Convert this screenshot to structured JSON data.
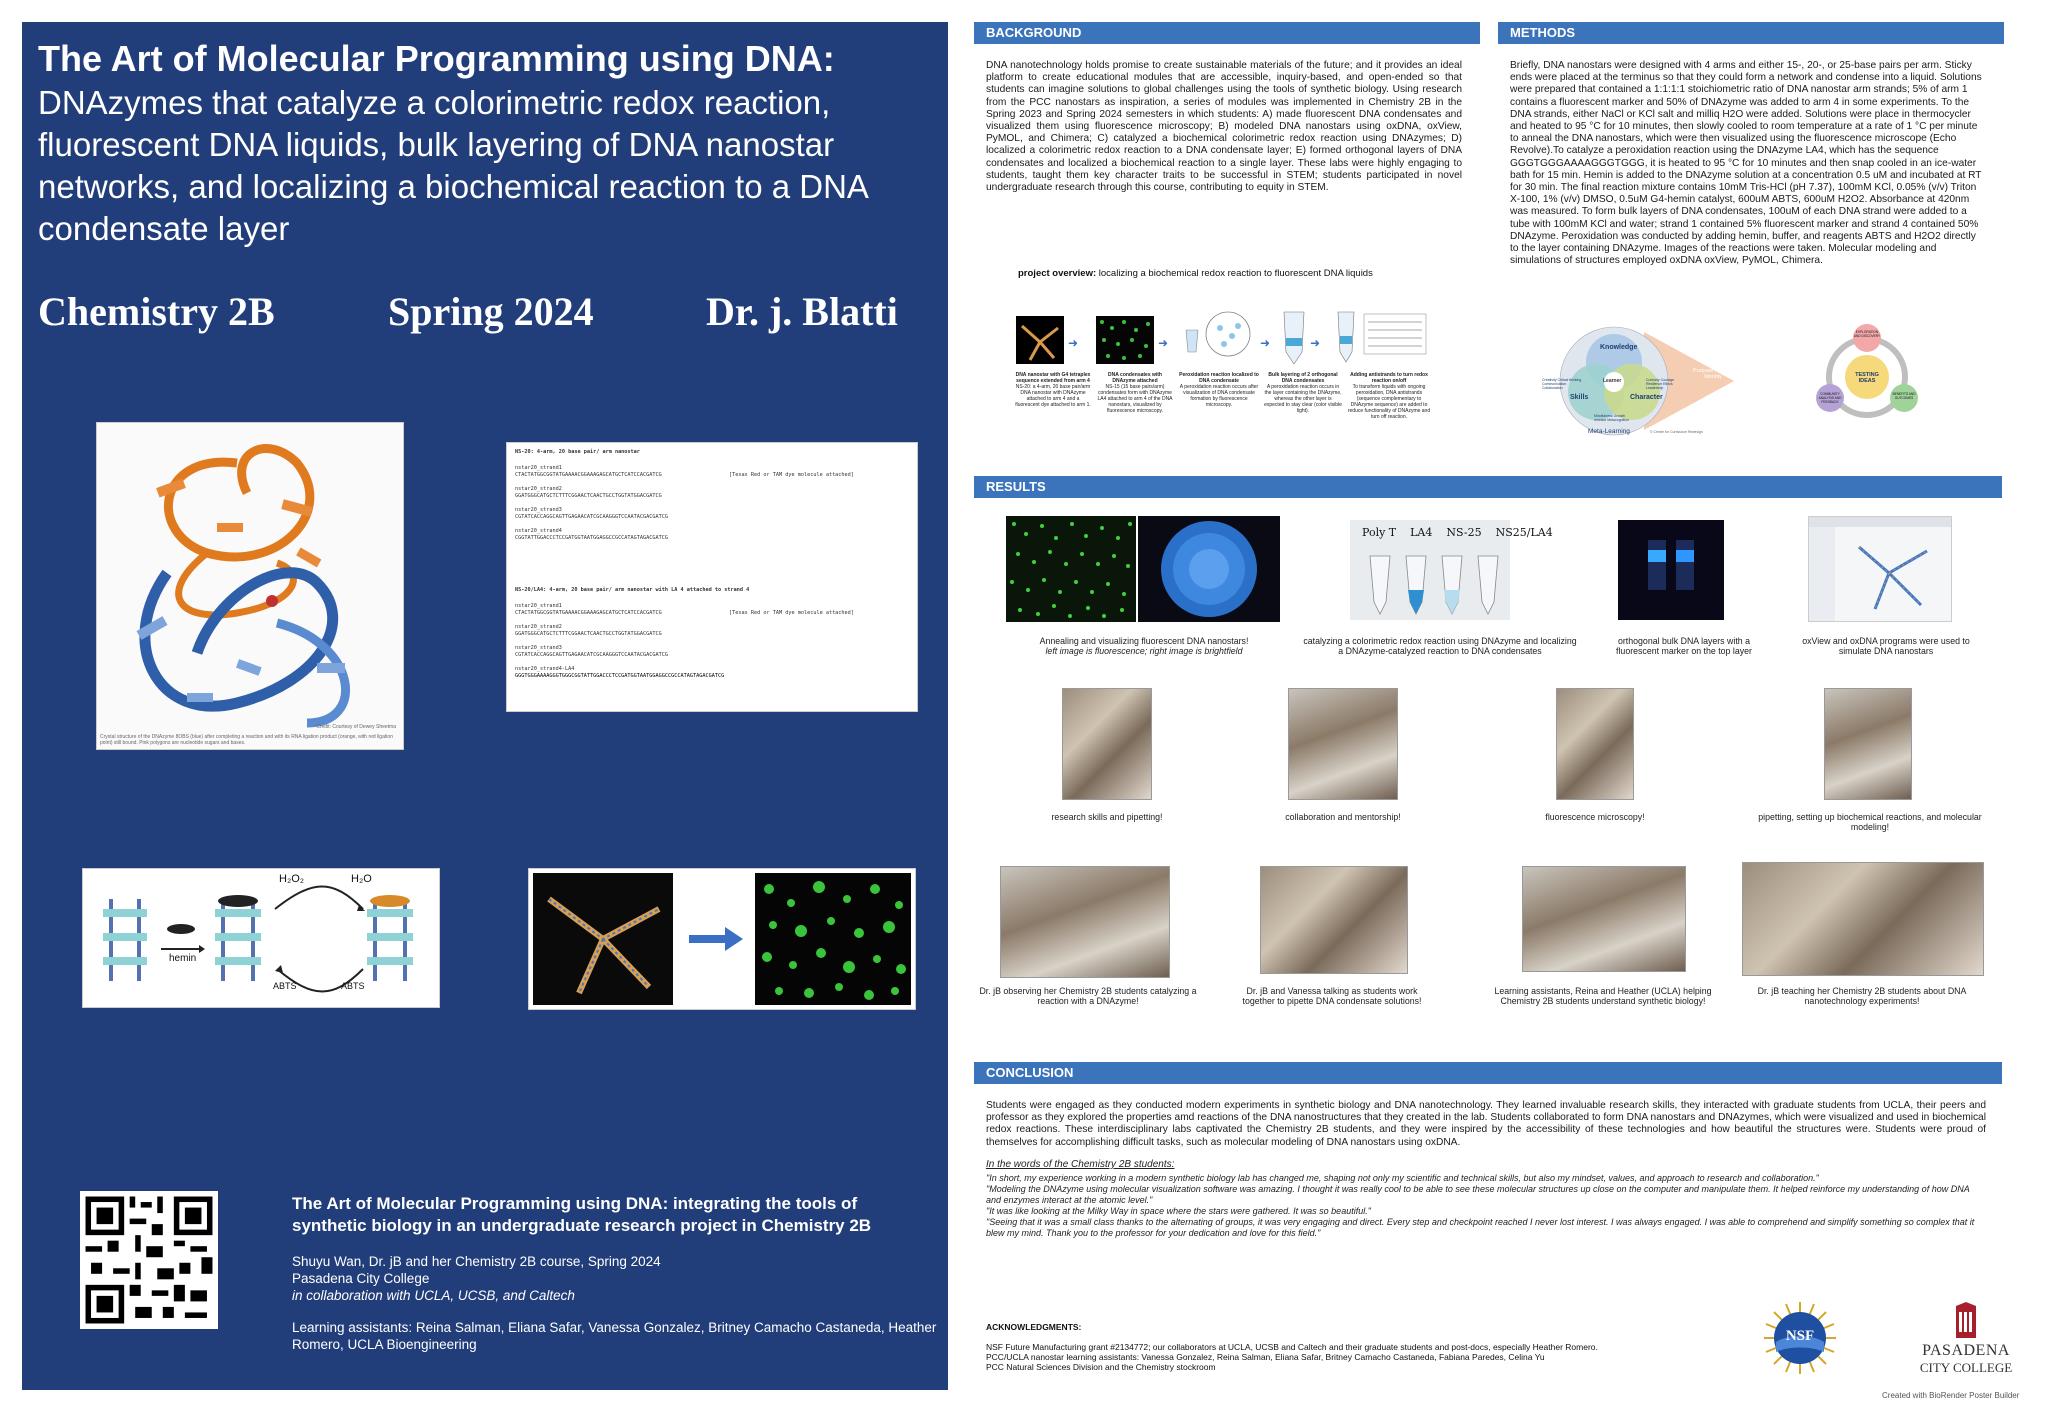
{
  "left": {
    "title_main": "The Art of Molecular Programming using DNA:",
    "title_sub": "DNAzymes that catalyze a colorimetric redox reaction, fluorescent DNA liquids, bulk layering of DNA nanostar networks, and localizing a biochemical reaction to a DNA condensate layer",
    "course": "Chemistry 2B",
    "term": "Spring 2024",
    "instructor": "Dr. j. Blatti",
    "dnazyme_credit": "Credit: Courtesy of Dewey Sheetma",
    "dnazyme_caption": "Crystal structure of the DNAzyme 8OBS (blue) after completing a reaction and with its RNA ligation product (orange, with red ligation point) still bound. Pink polygons are nucleotide sugars and bases.",
    "seq_ns20_header": "NS-20: 4-arm, 20 base pair/ arm nanostar",
    "seq_ns20_la4_header": "NS-20/LA4: 4-arm, 20 base pair/ arm nanostar with LA 4 attached to strand 4",
    "seq_note": "[Texas Red or TAM dye molecule attached]",
    "strands": [
      {
        "name": "nstar20_strand1",
        "seq": "CTACTATGGCGGTATGAAAACGGAAAGAGCATGCTCATCCACGATCG"
      },
      {
        "name": "nstar20_strand2",
        "seq": "GGATGGGCATGCTCTTTCGGAACTCAACTGCCTGGTATGGACGATCG"
      },
      {
        "name": "nstar20_strand3",
        "seq": "CGTATCACCAGGCAGTTGAGAACATCGCAAGGGTCCAATACGACGATCG"
      },
      {
        "name": "nstar20_strand4",
        "seq": "CGGTATTGGACCCTCCGATGGTAATGGAGGCCGCCATAGTAGACGATCG"
      }
    ],
    "strands_la4": [
      {
        "name": "nstar20_strand1",
        "seq": "CTACTATGGCGGTATGAAAACGGAAAGAGCATGCTCATCCACGATCG"
      },
      {
        "name": "nstar20_strand2",
        "seq": "GGATGGGCATGCTCTTTCGGAACTCAACTGCCTGGTATGGACGATCG"
      },
      {
        "name": "nstar20_strand3",
        "seq": "CGTATCACCAGGCAGTTGAGAACATCGCAAGGGTCCAATACGACGATCG"
      },
      {
        "name": "nstar20_strand4-LA4",
        "seq": "GGGTGGGAAAAGGGTGGGCGGTATTGGACCCTCCGATGGTAATGGAGGCCGCCATAGTAGACGATCG"
      }
    ],
    "hemin_label": "hemin",
    "h2o2_label": "H₂O₂",
    "h2o_label": "H₂O",
    "abts_left": "ABTS",
    "abts_right": "ABTS",
    "ref_title": "The Art of Molecular Programming using DNA: integrating the tools of synthetic biology in an undergraduate research project in Chemistry 2B",
    "ref_authors": "Shuyu Wan, Dr. jB and her Chemistry 2B course, Spring 2024",
    "ref_school": "Pasadena City College",
    "ref_collab": "in collaboration with UCLA, UCSB, and Caltech",
    "ref_assistants": "Learning assistants: Reina Salman, Eliana Safar, Vanessa Gonzalez,  Britney Camacho Castaneda, Heather Romero, UCLA Bioengineering"
  },
  "background": {
    "header": "BACKGROUND",
    "text": "DNA nanotechnology holds promise to create sustainable materials of the future; and it provides an ideal platform to create educational modules that are accessible, inquiry-based, and open-ended so that students can imagine solutions to global challenges using the tools of synthetic biology. Using research from the PCC nanostars as inspiration, a series of modules was implemented in Chemistry 2B in the Spring 2023 and Spring 2024 semesters in which students: A) made fluorescent DNA condensates and visualized them using fluorescence microscopy; B) modeled DNA nanostars using oxDNA, oxView, PyMOL, and Chimera; C) catalyzed a biochemical colorimetric redox reaction using DNAzymes; D) localized a colorimetric redox reaction to a DNA condensate layer; E) formed orthogonal layers of DNA condensates and localized a biochemical reaction to a single layer. These labs were highly engaging to students, taught them key character traits to be successful in STEM; students participated in novel undergraduate research through this course, contributing to equity in STEM.",
    "overview_label": "project overview:",
    "overview_text": "localizing a biochemical redox reaction to fluorescent DNA liquids",
    "steps": [
      {
        "title": "DNA nanostar with G4 tetraplex sequence extended from arm 4",
        "body": "NS-20: a 4-arm, 20 base pair/arm DNA nanostar with DNAzyme attached to arm 4 and a fluorescent dye attached to arm 1."
      },
      {
        "title": "DNA condensates with DNAzyme attached",
        "body": "NS-15 (15 base pairs/arm) condensates form with DNAzyme LA4 attached to arm 4 of the DNA nanostars, visualized by fluorescence microscopy."
      },
      {
        "title": "Peroxidation reaction localized to DNA condensate",
        "body": "A peroxidation reaction occurs after visualization of DNA condensate formation by fluorescence microscopy."
      },
      {
        "title": "Bulk layering of 2 orthogonal DNA condensates",
        "body": "A peroxidation reaction occurs in the layer containing the DNAzyme, whereas the other layer is expected to stay clear (color visible light)."
      },
      {
        "title": "Adding antistrands to turn redox reaction on/off",
        "body": "To transform liquids with ongoing peroxidation, DNA antistrands (sequence complementary to DNAzyme sequence) are added to reduce functionality of DNAzyme and turn off reaction."
      }
    ]
  },
  "methods": {
    "header": "METHODS",
    "text": "Briefly, DNA nanostars were designed with 4 arms and either 15-, 20-, or 25-base pairs per arm. Sticky ends were placed at the terminus so that they could form a network and condense into a liquid. Solutions were prepared that contained a 1:1:1:1 stoichiometric ratio of DNA nanostar arm strands; 5% of arm 1 contains a fluorescent marker and 50% of DNAzyme was added to arm 4 in some experiments. To the DNA strands, either NaCl or KCl salt and milliq H2O were added. Solutions were place in thermocycler and heated to 95 °C for 10 minutes, then slowly cooled to room temperature at a rate of 1 °C per minute to anneal the DNA nanostars, which were then visualized using the fluorescence microscope (Echo Revolve).To catalyze a peroxidation reaction using the DNAzyme LA4, which has the sequence GGGTGGGAAAAGGGTGGG, it is heated to 95 °C for 10 minutes and then snap cooled in an ice-water bath for 15 min. Hemin is added to the DNAzyme solution at a concentration 0.5 uM and incubated at RT for 30 min. The final reaction mixture contains 10mM Tris-HCl (pH 7.37), 100mM KCl, 0.05% (v/v) Triton X-100, 1% (v/v) DMSO, 0.5uM G4-hemin catalyst, 600uM ABTS, 600uM H2O2. Absorbance at 420nm was measured. To form bulk layers of DNA condensates, 100uM of each DNA strand were added to a tube with 100mM KCl and water; strand 1 contained 5% fluorescent marker and strand 4 contained 50% DNAzyme. Peroxidation was conducted by adding hemin, buffer, and reagents ABTS and H2O2 directly to the layer containing DNAzyme. Images of the reactions were taken. Molecular modeling and simulations of structures employed oxDNA oxView, PyMOL, Chimera.",
    "venn_labels": [
      "Knowledge",
      "Skills",
      "Character",
      "Meta-Learning",
      "Learner",
      "Purpose Agency Identity"
    ],
    "venn_small": [
      "Creativity Critical thinking Communication Collaboration",
      "Curiosity Courage Resilience Ethics Leadership",
      "Mindfulness Growth mindset Metacognition"
    ],
    "venn_credit": "© Center for Curriculum Redesign",
    "cycle_center": "TESTING IDEAS",
    "cycle_labels": [
      "EXPLORATION AND DISCOVERY",
      "COMMUNITY ANALYSIS AND FEEDBACK",
      "BENEFITS AND OUTCOMES"
    ]
  },
  "results": {
    "header": "RESULTS",
    "captions_row1": [
      {
        "text": "Annealing and visualizing fluorescent DNA nanostars!",
        "italic": "left image is fluorescence; right image is brightfield"
      },
      {
        "text": "catalyzing a colorimetric redox reaction using DNAzyme and localizing a DNAzyme-catalyzed reaction to DNA condensates",
        "italic": ""
      },
      {
        "text": "orthogonal bulk DNA layers with a fluorescent marker on the top layer",
        "italic": ""
      },
      {
        "text": "oxView and oxDNA programs were used to simulate DNA nanostars",
        "italic": ""
      }
    ],
    "tube_label": "Poly T    LA4    NS-25    NS25/LA4",
    "captions_row2": [
      "research skills and pipetting!",
      "collaboration and mentorship!",
      "fluorescence microscopy!",
      "pipetting, setting up biochemical reactions, and molecular modeling!"
    ],
    "captions_row3": [
      "Dr. jB observing her Chemistry 2B students catalyzing a reaction with a DNAzyme!",
      "Dr. jB and Vanessa talking as students work together to pipette DNA condensate solutions!",
      "Learning assistants, Reina and Heather (UCLA) helping Chemistry 2B students understand synthetic biology!",
      "Dr. jB teaching her Chemistry 2B students about DNA nanotechnology experiments!"
    ]
  },
  "conclusion": {
    "header": "CONCLUSION",
    "text": "Students were engaged as they conducted modern experiments in synthetic biology and DNA nanotechnology. They learned invaluable research skills, they interacted with graduate students from UCLA, their peers and professor as they explored the properties amd reactions of the DNA nanostructures that they created in the lab. Students collaborated to form DNA nanostars and DNAzymes, which were visualized and used in biochemical redox reactions. These interdisciplinary labs captivated the Chemistry 2B students, and they were inspired by the accessibility of these technologies and how beautiful the structures were. Students were proud of themselves for accomplishing difficult tasks, such as molecular modeling of DNA nanostars using oxDNA.",
    "quotes_heading": "In the words of the Chemistry 2B students:",
    "quotes": [
      "\"In short, my experience working in a modern synthetic biology lab has changed me, shaping not only my scientific and technical skills, but also my mindset, values, and approach to research and collaboration.\"",
      "\"Modeling the DNAzyme using molecular visualization software was amazing. I thought it was really cool to be able to see these molecular structures up close on the computer and manipulate them. It helped reinforce my understanding of how DNA and enzymes interact at the atomic level.\"",
      "\"It was like looking at the Milky Way in space where the stars were gathered. It was so beautiful.\"",
      "\"Seeing that it was a small class thanks to the alternating of groups, it was very engaging and direct. Every step and checkpoint reached I never lost interest. I was always engaged. I was able to comprehend and simplify something so complex that it blew my mind. Thank you to the professor for your dedication and love for this field.\""
    ]
  },
  "acknowledgments": {
    "header": "ACKNOWLEDGMENTS:",
    "lines": [
      "NSF Future Manufacturing grant #2134772; our collaborators at UCLA, UCSB and Caltech and their graduate students and post-docs, especially Heather Romero.",
      "PCC/UCLA nanostar learning assistants: Vanessa Gonzalez, Reina Salman, Eliana Safar, Britney Camacho Castaneda, Fabiana Paredes, Celina Yu",
      "PCC Natural Sciences Division and the Chemistry stockroom"
    ],
    "nsf_logo": "NSF",
    "pcc_logo_line1": "PASADENA",
    "pcc_logo_line2": "CITY COLLEGE",
    "footer": "Created with BioRender Poster Builder"
  },
  "colors": {
    "left_panel": "#223e7a",
    "section_header": "#3c74bc",
    "fluor_green": "#39c43c"
  }
}
